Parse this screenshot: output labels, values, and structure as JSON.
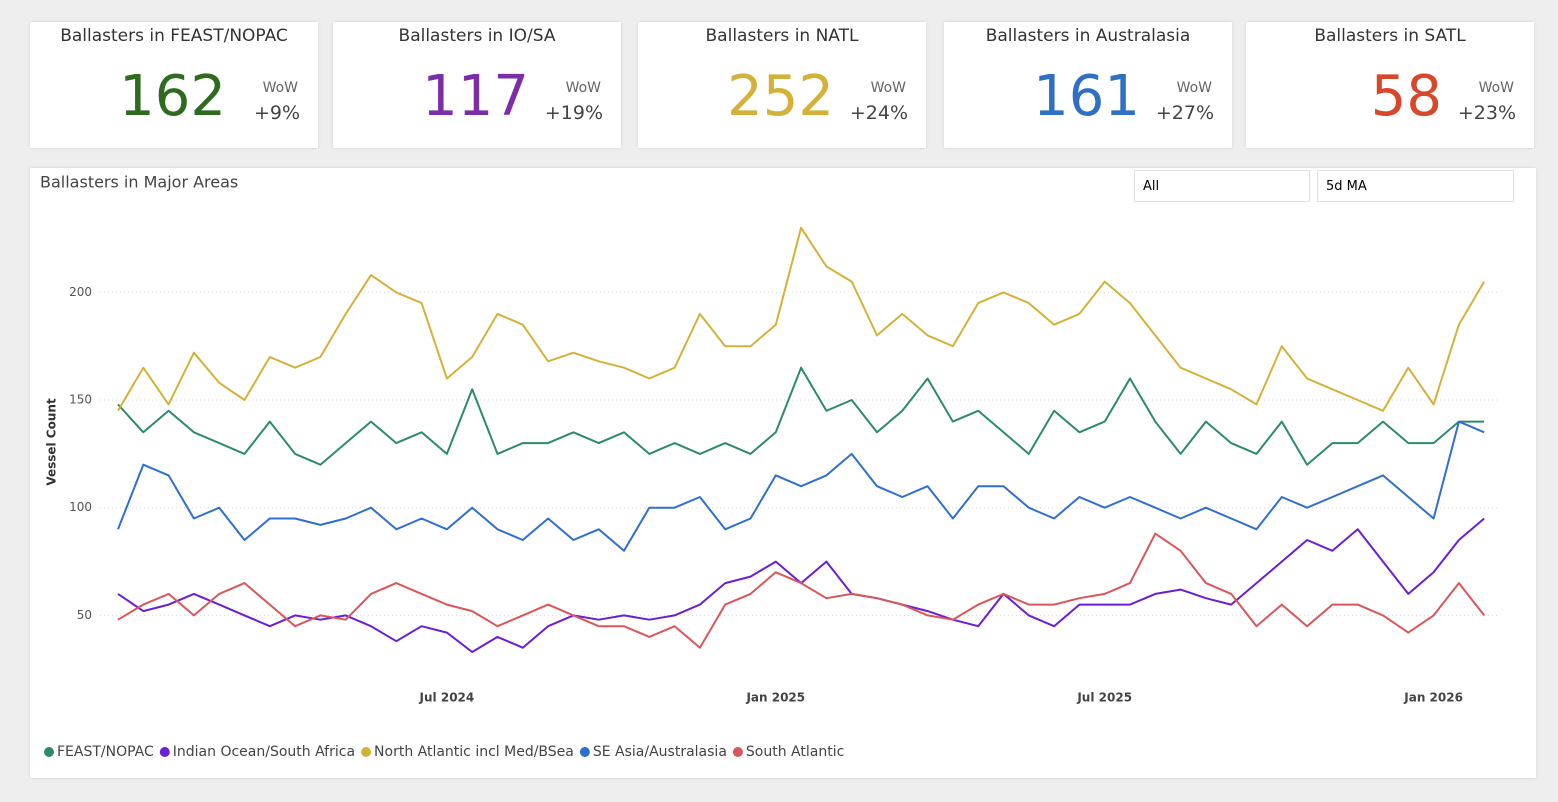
{
  "cards": [
    {
      "title": "Ballasters in FEAST/NOPAC",
      "value": 162,
      "color": "#2e6b1f",
      "change_label": "WoW",
      "change": "+9%"
    },
    {
      "title": "Ballasters in IO/SA",
      "value": 117,
      "color": "#7b2ea8",
      "change_label": "WoW",
      "change": "+19%"
    },
    {
      "title": "Ballasters in NATL",
      "value": 252,
      "color": "#d4b23a",
      "change_label": "WoW",
      "change": "+24%"
    },
    {
      "title": "Ballasters in Australasia",
      "value": 161,
      "color": "#2f6fc4",
      "change_label": "WoW",
      "change": "+27%"
    },
    {
      "title": "Ballasters in SATL",
      "value": 58,
      "color": "#d9472b",
      "change_label": "WoW",
      "change": "+23%"
    }
  ],
  "filters": [
    "All",
    "5d MA"
  ],
  "chart_data": {
    "type": "line",
    "title": "Ballasters in Major Areas",
    "y_label": "Vessel Count",
    "categories": [
      null,
      null,
      null,
      null,
      null,
      null,
      null,
      null,
      null,
      null,
      null,
      null,
      null,
      "Jul 2024",
      null,
      null,
      null,
      null,
      null,
      null,
      null,
      null,
      null,
      null,
      null,
      null,
      "Jan 2025",
      null,
      null,
      null,
      null,
      null,
      null,
      null,
      null,
      null,
      null,
      null,
      null,
      "Jul 2025",
      null,
      null,
      null,
      null,
      null,
      null,
      null,
      null,
      null,
      null,
      null,
      null,
      "Jan 2026",
      null,
      null
    ],
    "ylim": [
      20,
      235
    ],
    "yticks": [
      50,
      100,
      150,
      200
    ],
    "grid": true,
    "series": [
      {
        "name": "FEAST/NOPAC",
        "color": "#2e8b6a",
        "values": [
          148,
          135,
          145,
          135,
          130,
          125,
          140,
          125,
          120,
          130,
          140,
          130,
          135,
          125,
          155,
          125,
          130,
          130,
          135,
          130,
          135,
          125,
          130,
          125,
          130,
          125,
          135,
          165,
          145,
          150,
          135,
          145,
          160,
          140,
          145,
          135,
          125,
          145,
          135,
          140,
          160,
          140,
          125,
          140,
          130,
          125,
          140,
          120,
          130,
          130,
          140,
          130,
          130,
          140,
          140
        ]
      },
      {
        "name": "Indian Ocean/South Africa",
        "color": "#6a1fd6",
        "values": [
          60,
          52,
          55,
          60,
          55,
          50,
          45,
          50,
          48,
          50,
          45,
          38,
          45,
          42,
          33,
          40,
          35,
          45,
          50,
          48,
          50,
          48,
          50,
          55,
          65,
          68,
          75,
          65,
          75,
          60,
          58,
          55,
          52,
          48,
          45,
          60,
          50,
          45,
          55,
          55,
          55,
          60,
          62,
          58,
          55,
          65,
          75,
          85,
          80,
          90,
          75,
          60,
          70,
          85,
          95
        ]
      },
      {
        "name": "North Atlantic incl Med/BSea",
        "color": "#d4b23a",
        "values": [
          145,
          165,
          148,
          172,
          158,
          150,
          170,
          165,
          170,
          190,
          208,
          200,
          195,
          160,
          170,
          190,
          185,
          168,
          172,
          168,
          165,
          160,
          165,
          190,
          175,
          175,
          185,
          230,
          212,
          205,
          180,
          190,
          180,
          175,
          195,
          200,
          195,
          185,
          190,
          205,
          195,
          180,
          165,
          160,
          155,
          148,
          175,
          160,
          155,
          150,
          145,
          165,
          148,
          185,
          205
        ]
      },
      {
        "name": "SE Asia/Australasia",
        "color": "#2f6fd0",
        "values": [
          90,
          120,
          115,
          95,
          100,
          85,
          95,
          95,
          92,
          95,
          100,
          90,
          95,
          90,
          100,
          90,
          85,
          95,
          85,
          90,
          80,
          100,
          100,
          105,
          90,
          95,
          115,
          110,
          115,
          125,
          110,
          105,
          110,
          95,
          110,
          110,
          100,
          95,
          105,
          100,
          105,
          100,
          95,
          100,
          95,
          90,
          105,
          100,
          105,
          110,
          115,
          105,
          95,
          140,
          135
        ]
      },
      {
        "name": "South Atlantic",
        "color": "#d9575a",
        "values": [
          48,
          55,
          60,
          50,
          60,
          65,
          55,
          45,
          50,
          48,
          60,
          65,
          60,
          55,
          52,
          45,
          50,
          55,
          50,
          45,
          45,
          40,
          45,
          35,
          55,
          60,
          70,
          65,
          58,
          60,
          58,
          55,
          50,
          48,
          55,
          60,
          55,
          55,
          58,
          60,
          65,
          88,
          80,
          65,
          60,
          45,
          55,
          45,
          55,
          55,
          50,
          42,
          50,
          65,
          50
        ]
      }
    ]
  }
}
